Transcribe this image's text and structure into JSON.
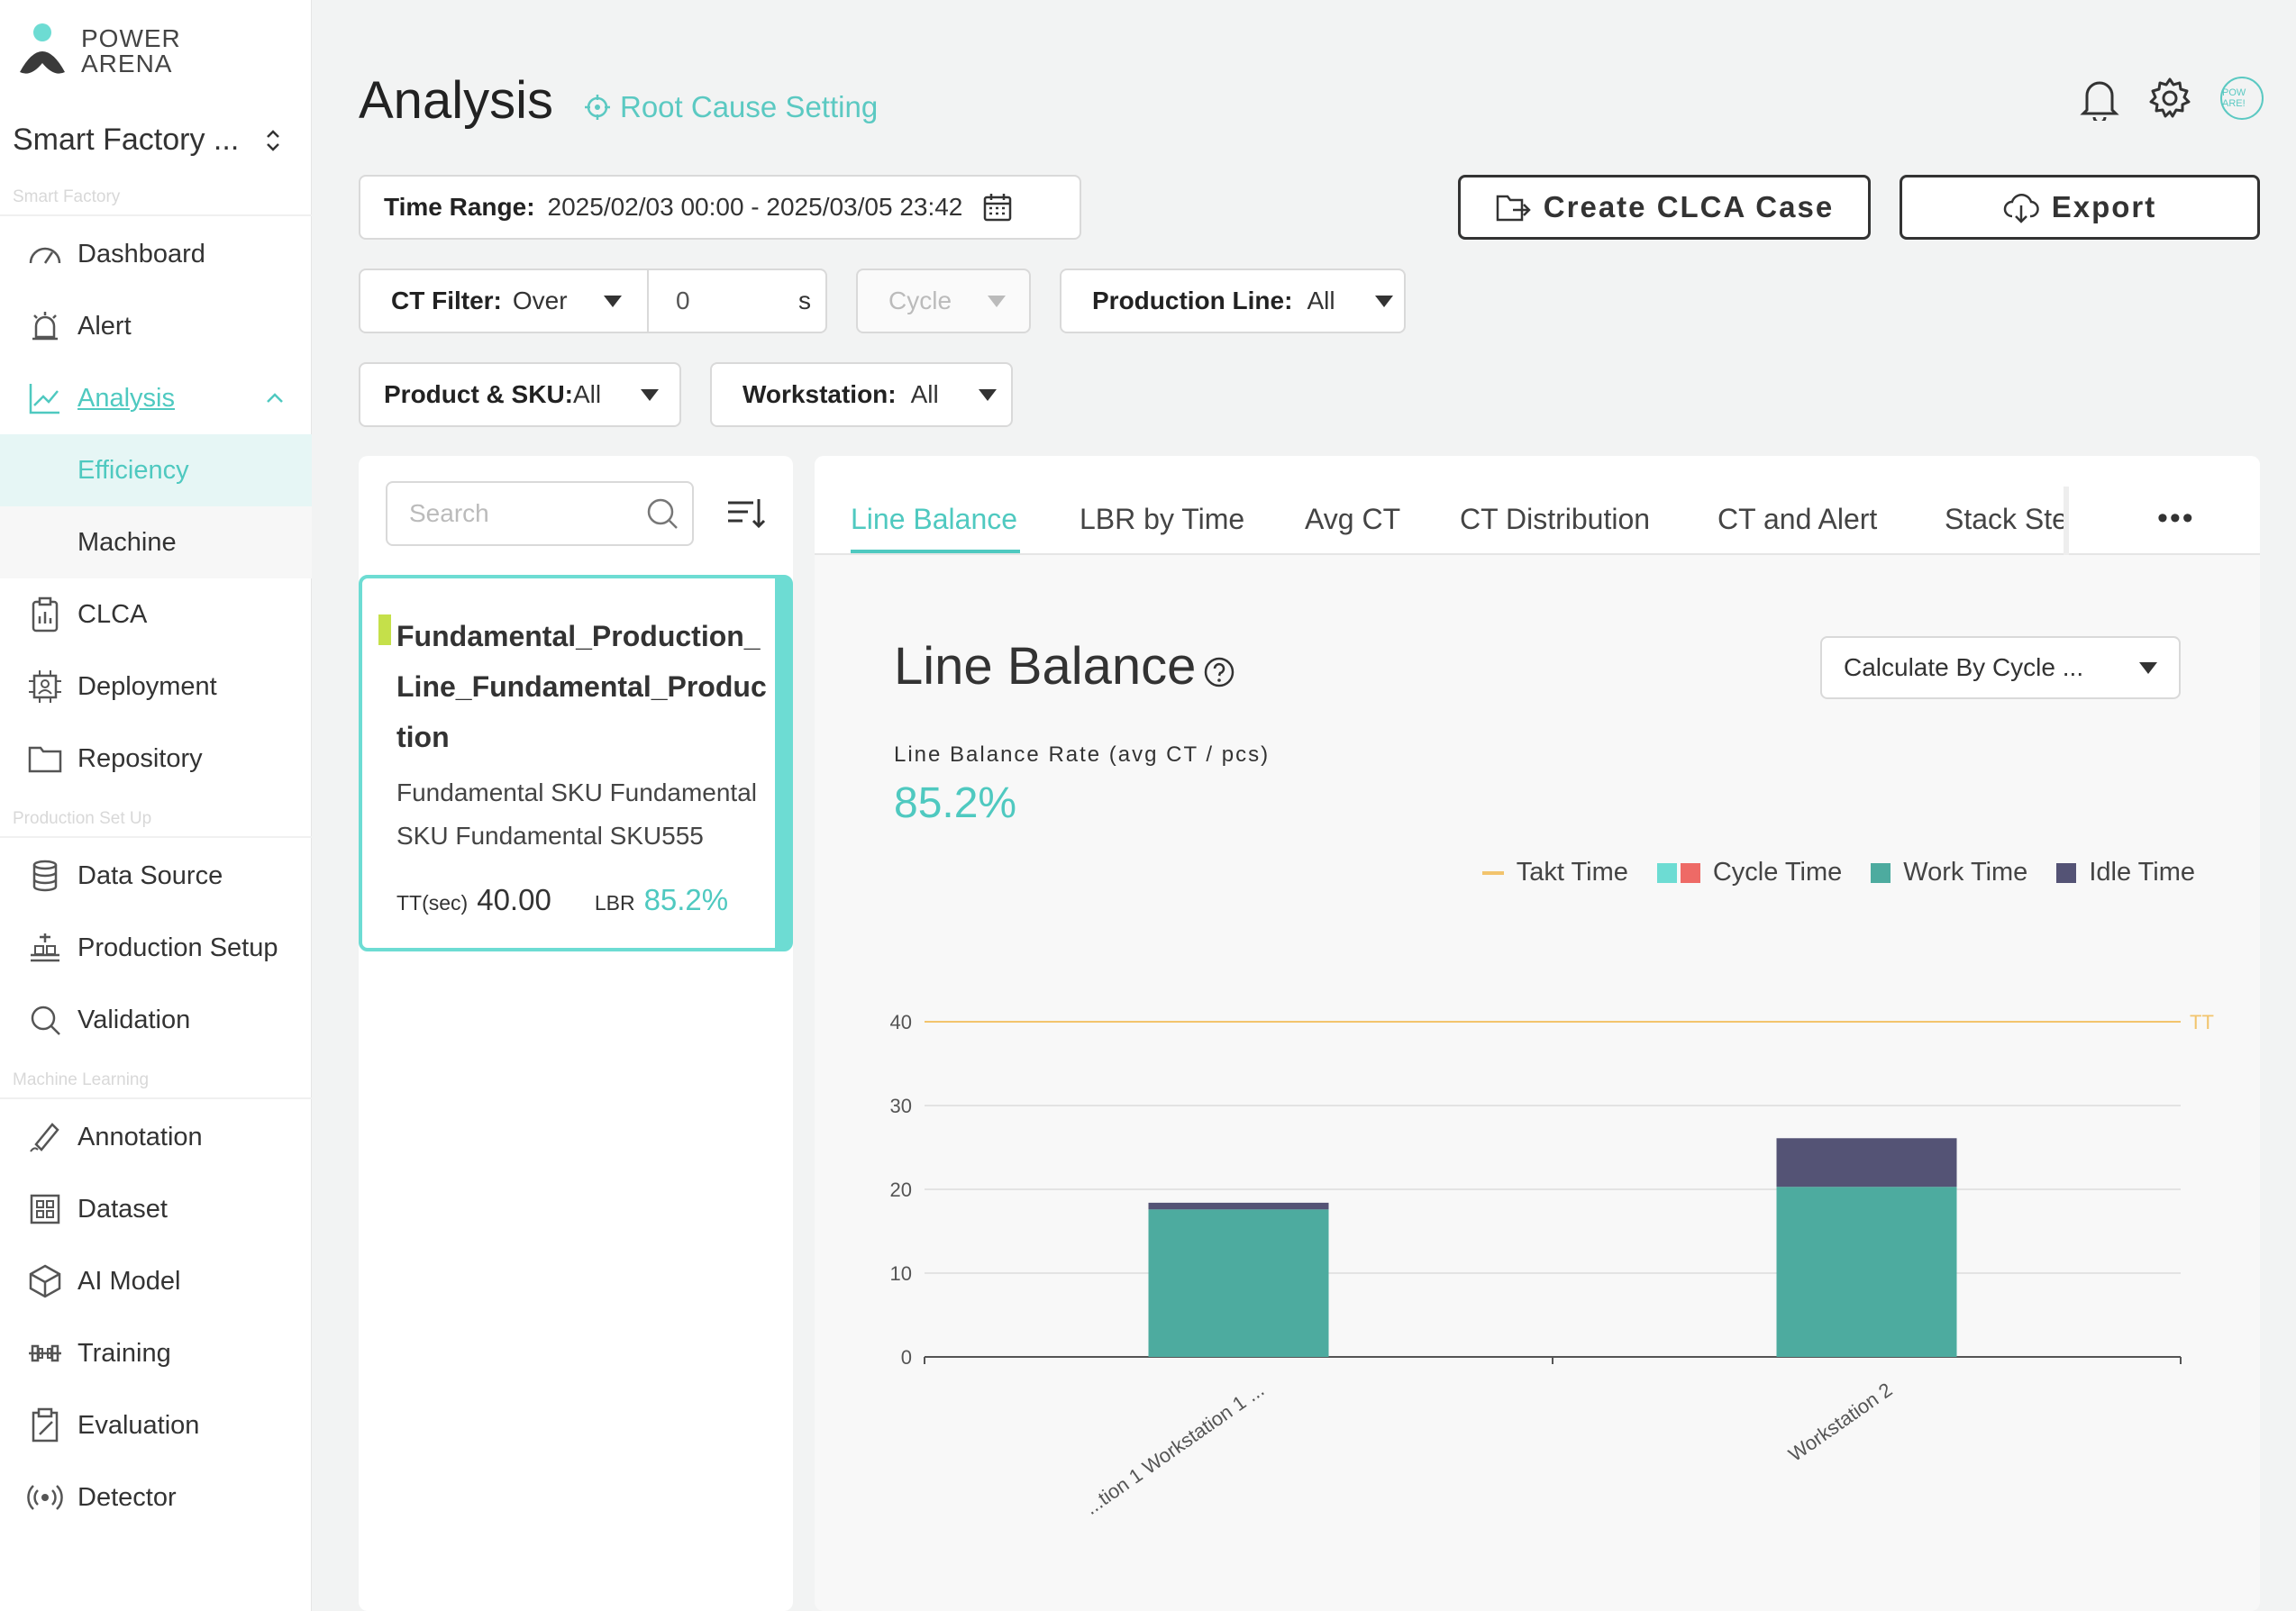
{
  "brand": {
    "line1": "POWER",
    "line2": "ARENA"
  },
  "project": {
    "name": "Smart Factory ..."
  },
  "sidebar": {
    "sections": {
      "smart_factory": "Smart Factory",
      "production": "Production Set Up",
      "ml": "Machine Learning"
    },
    "items": {
      "dashboard": "Dashboard",
      "alert": "Alert",
      "analysis": "Analysis",
      "efficiency": "Efficiency",
      "machine": "Machine",
      "clca": "CLCA",
      "deployment": "Deployment",
      "repository": "Repository",
      "data_source": "Data Source",
      "production_setup": "Production Setup",
      "validation": "Validation",
      "annotation": "Annotation",
      "dataset": "Dataset",
      "ai_model": "AI Model",
      "training": "Training",
      "evaluation": "Evaluation",
      "detector": "Detector"
    }
  },
  "header": {
    "title": "Analysis",
    "root_cause": "Root Cause Setting",
    "avatar": "POW ARE!"
  },
  "filters": {
    "time_range_label": "Time Range:",
    "time_range_value": "2025/02/03 00:00 - 2025/03/05 23:42",
    "ct_filter_label": "CT Filter:",
    "ct_filter_value": "Over",
    "ct_input_value": "0",
    "ct_unit": "s",
    "cycle_placeholder": "Cycle",
    "production_line_label": "Production Line:",
    "production_line_value": "All",
    "product_label": "Product & SKU:",
    "product_value": "All",
    "workstation_label": "Workstation:",
    "workstation_value": "All"
  },
  "actions": {
    "create_clca": "Create CLCA Case",
    "export": "Export"
  },
  "list": {
    "search_placeholder": "Search",
    "card": {
      "title": "Fundamental_Production_Line_Fundamental_Production",
      "sku": "Fundamental SKU Fundamental SKU Fundamental SKU555",
      "tt_label": "TT(sec)",
      "tt_value": "40.00",
      "lbr_label": "LBR",
      "lbr_value": "85.2%"
    }
  },
  "tabs": [
    "Line Balance",
    "LBR by Time",
    "Avg CT",
    "CT Distribution",
    "CT and Alert",
    "Stack Ste"
  ],
  "panel": {
    "title": "Line Balance",
    "calc_select": "Calculate By Cycle ...",
    "rate_label": "Line Balance Rate (avg CT / pcs)",
    "rate_value": "85.2%"
  },
  "legend": {
    "takt": "Takt Time",
    "cycle": "Cycle Time",
    "work": "Work Time",
    "idle": "Idle Time"
  },
  "colors": {
    "accent": "#4fc9c0",
    "work": "#4dab9f",
    "idle": "#545375",
    "takt": "#f2c46d",
    "cycle_a": "#6ddcd3",
    "cycle_b": "#ee6a66"
  },
  "chart_data": {
    "type": "bar",
    "stacked": true,
    "categories": [
      "...tion 1 Workstation 1 ...",
      "Workstation 2"
    ],
    "series": [
      {
        "name": "Work Time",
        "values": [
          17.6,
          20.3
        ]
      },
      {
        "name": "Idle Time",
        "values": [
          0.8,
          5.8
        ]
      }
    ],
    "takt_time": 40,
    "takt_label": "TT",
    "ylim": [
      0,
      40
    ],
    "yticks": [
      0,
      10,
      20,
      30,
      40
    ],
    "grid": true,
    "legend_position": "top-right"
  }
}
